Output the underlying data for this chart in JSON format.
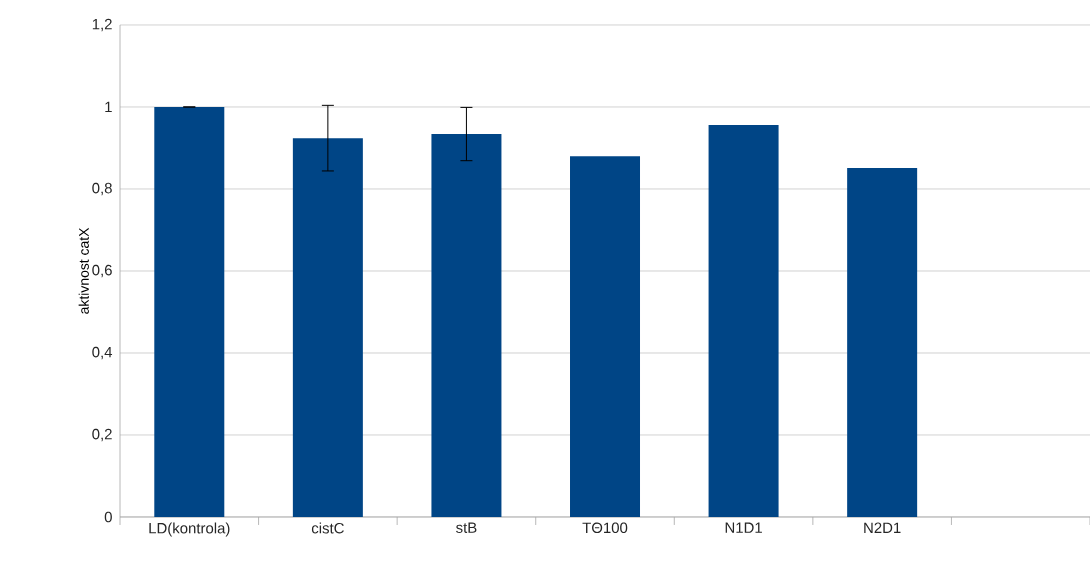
{
  "chart_data": {
    "type": "bar",
    "ylabel": "aktivnost catX",
    "categories": [
      "LD(kontrola)",
      "cistC",
      "stB",
      "TΘ100",
      "N1D1",
      "N2D1",
      null
    ],
    "values": [
      1.0,
      0.924,
      0.934,
      0.88,
      0.956,
      0.851,
      null
    ],
    "errors": [
      0,
      0.08,
      0.065,
      null,
      null,
      null,
      null
    ],
    "color": "#004586",
    "ylim": [
      0,
      1.2
    ],
    "yticks": [
      0,
      {
        "value": 0.2,
        "label": "0,2"
      },
      {
        "value": 0.4,
        "label": "0,4"
      },
      {
        "value": 0.6,
        "label": "0,6"
      },
      {
        "value": 0.8,
        "label": "0,8"
      },
      1,
      {
        "value": 1.2,
        "label": "1,2"
      }
    ],
    "grid": "y"
  }
}
